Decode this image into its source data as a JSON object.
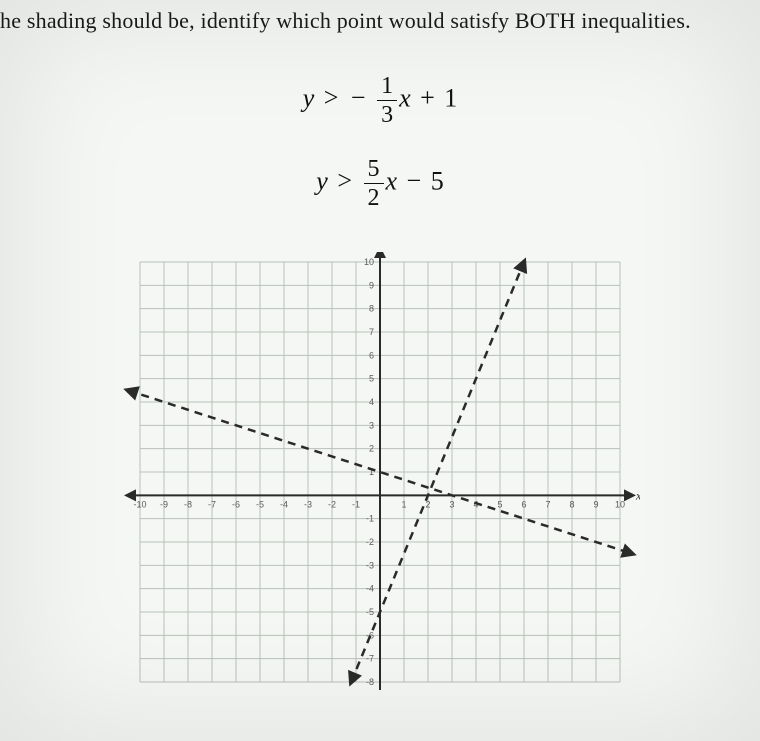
{
  "question_text": "he shading should be, identify which point would satisfy BOTH inequalities.",
  "inequalities": {
    "eq1": {
      "lhs_var": "y",
      "op": ">",
      "coef_sign": "−",
      "coef_num": "1",
      "coef_den": "3",
      "x_var": "x",
      "constant_op": "+",
      "constant": "1"
    },
    "eq2": {
      "lhs_var": "y",
      "op": ">",
      "coef_num": "5",
      "coef_den": "2",
      "x_var": "x",
      "constant_op": "−",
      "constant": "5"
    }
  },
  "graph": {
    "type": "line",
    "xlim": [
      -10,
      10
    ],
    "ylim": [
      -8,
      10
    ],
    "xtick_step": 1,
    "ytick_step": 1,
    "x_label": "x",
    "y_label": "y",
    "grid_color": "#b8c0b8",
    "axis_color": "#2a2a2a",
    "background_color": "#f5f7f4",
    "tick_label_color": "#5a5a5a",
    "tick_label_fontsize": 9,
    "axis_label_fontsize": 12,
    "lines": [
      {
        "name": "line1",
        "slope": -0.3333,
        "intercept": 1,
        "color": "#2a2a2a",
        "width": 2.5,
        "style": "dashed",
        "dash_pattern": "8,6",
        "arrow_start": true,
        "arrow_end": true,
        "x_range": [
          -10.5,
          10.5
        ]
      },
      {
        "name": "line2",
        "slope": 2.5,
        "intercept": -5,
        "color": "#2a2a2a",
        "width": 2.5,
        "style": "dashed",
        "dash_pattern": "8,6",
        "arrow_start": true,
        "arrow_end": true,
        "x_range": [
          -1.2,
          6
        ]
      }
    ],
    "x_tick_labels": [
      "-10",
      "-9",
      "-8",
      "-7",
      "-6",
      "-5",
      "-4",
      "-3",
      "-2",
      "-1",
      "1",
      "2",
      "3",
      "4",
      "5",
      "6",
      "7",
      "8",
      "9",
      "10"
    ],
    "y_tick_labels_pos": [
      "1",
      "2",
      "3",
      "4",
      "5",
      "6",
      "7",
      "8",
      "9",
      "10"
    ],
    "y_tick_labels_neg": [
      "-1",
      "-2",
      "-3",
      "-4",
      "-5",
      "-6",
      "-7",
      "-8"
    ]
  }
}
